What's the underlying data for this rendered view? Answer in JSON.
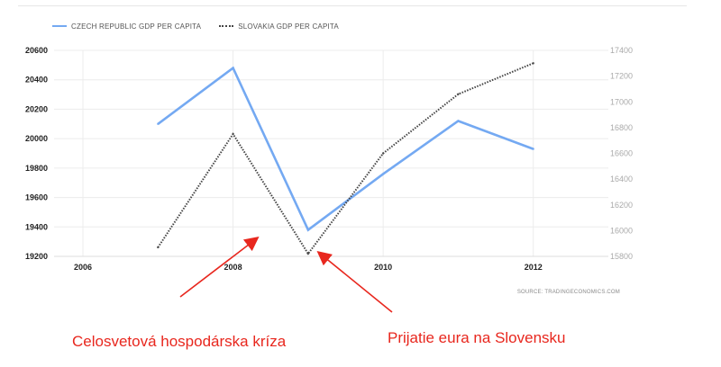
{
  "chart_data": {
    "type": "line",
    "x": [
      2007,
      2008,
      2009,
      2010,
      2011,
      2012
    ],
    "xlim": [
      2006,
      2013
    ],
    "x_ticks": [
      2006,
      2008,
      2010,
      2012
    ],
    "x_tick_labels": [
      "2006",
      "2008",
      "2010",
      "2012"
    ],
    "y_left": {
      "lim": [
        19200,
        20600
      ],
      "ticks": [
        19200,
        19400,
        19600,
        19800,
        20000,
        20200,
        20400,
        20600
      ],
      "tick_labels": [
        "19200",
        "19400",
        "19600",
        "19800",
        "20000",
        "20200",
        "20400",
        "20600"
      ]
    },
    "y_right": {
      "lim": [
        15800,
        17400
      ],
      "ticks": [
        15800,
        16000,
        16200,
        16400,
        16600,
        16800,
        17000,
        17200,
        17400
      ],
      "tick_labels": [
        "15800",
        "16000",
        "16200",
        "16400",
        "16600",
        "16800",
        "17000",
        "17200",
        "17400"
      ]
    },
    "series": [
      {
        "name": "CZECH REPUBLIC GDP PER CAPITA",
        "axis": "left",
        "style": "solid",
        "color": "#74a9f2",
        "values": [
          20100,
          20480,
          19380,
          19760,
          20120,
          19930
        ]
      },
      {
        "name": "SLOVAKIA GDP PER CAPITA",
        "axis": "right",
        "style": "dotted",
        "color": "#444444",
        "values": [
          15870,
          16750,
          15820,
          16600,
          17060,
          17300
        ]
      }
    ],
    "grid": true,
    "legend_position": "top-left",
    "source": "SOURCE: TRADINGECONOMICS.COM"
  },
  "annotations": [
    {
      "text": "Celosvetová hospodárska kríza",
      "color": "#e8271e",
      "points_to": 2008
    },
    {
      "text": "Prijatie eura na Slovensku",
      "color": "#e8271e",
      "points_to": 2009
    }
  ]
}
